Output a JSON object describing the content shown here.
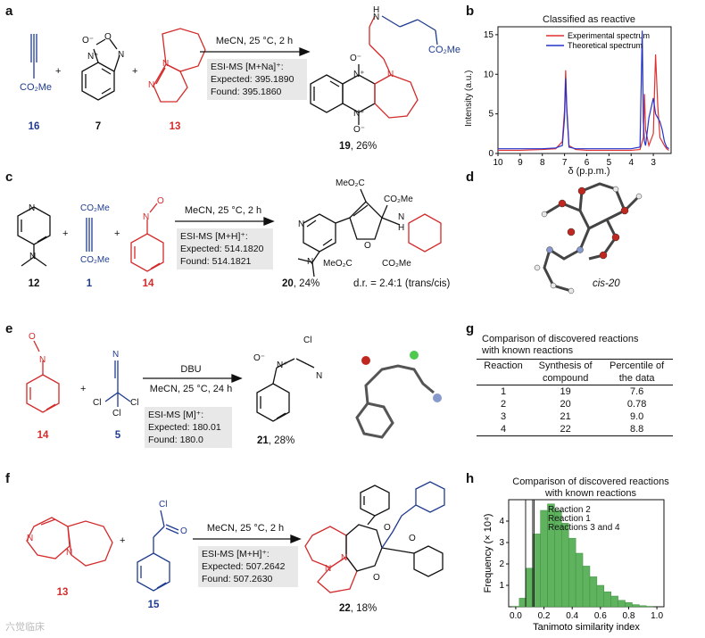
{
  "panel_labels": [
    "a",
    "b",
    "c",
    "d",
    "e",
    "f",
    "g",
    "h"
  ],
  "a": {
    "conditions": "MeCN, 25 °C, 2 h",
    "esi_lines": [
      "ESI-MS [M+Na]⁺:",
      "Expected: 395.1890",
      "Found: 395.1860"
    ],
    "reactants": [
      {
        "id": "16",
        "formula": "CO₂Me"
      },
      {
        "id": "7",
        "atoms": [
          "O⁻",
          "N⁺",
          "O",
          "N"
        ]
      },
      {
        "id": "13",
        "atoms": [
          "N",
          "N"
        ]
      }
    ],
    "product": {
      "id": "19",
      "yield": ", 26%",
      "atoms": [
        "O⁻",
        "N⁺",
        "N⁺",
        "O⁻",
        "N",
        "H",
        "N",
        "CO₂Me"
      ]
    }
  },
  "b": {
    "title": "Classified as reactive",
    "xlabel": "δ (p.p.m.)",
    "ylabel": "Intensity (a.u.)"
  },
  "c": {
    "conditions": "MeCN, 25 °C, 2 h",
    "esi_lines": [
      "ESI-MS [M+H]⁺:",
      "Expected: 514.1820",
      "Found: 514.1821"
    ],
    "reactants": [
      {
        "id": "12",
        "atoms": [
          "N",
          "N"
        ]
      },
      {
        "id": "1",
        "atoms": [
          "CO₂Me",
          "CO₂Me"
        ]
      },
      {
        "id": "14",
        "atoms": [
          "N",
          "O"
        ]
      }
    ],
    "product": {
      "id": "20",
      "yield": ", 24%",
      "dr": "d.r. = 2.4:1 (trans/cis)",
      "atoms": [
        "MeO₂C",
        "CO₂Me",
        "N",
        "O",
        "N",
        "H",
        "MeO₂C",
        "CO₂Me",
        "N"
      ]
    }
  },
  "d": {
    "caption": "cis-20"
  },
  "e": {
    "conditions_top": "DBU",
    "conditions": "MeCN, 25 °C, 24 h",
    "esi_lines": [
      "ESI-MS [M]⁺:",
      "Expected: 180.01",
      "Found: 180.0"
    ],
    "reactants": [
      {
        "id": "14",
        "atoms": [
          "N",
          "O"
        ]
      },
      {
        "id": "5",
        "atoms": [
          "N",
          "Cl",
          "Cl",
          "Cl"
        ]
      }
    ],
    "product": {
      "id": "21",
      "yield": ", 28%",
      "atoms": [
        "O⁻",
        "N⁺",
        "Cl",
        "N"
      ]
    }
  },
  "f": {
    "conditions": "MeCN, 25 °C, 2 h",
    "esi_lines": [
      "ESI-MS [M+H]⁺:",
      "Expected: 507.2642",
      "Found: 507.2630"
    ],
    "reactants": [
      {
        "id": "13",
        "atoms": [
          "N",
          "N"
        ]
      },
      {
        "id": "15",
        "atoms": [
          "Cl",
          "O"
        ]
      }
    ],
    "product": {
      "id": "22",
      "yield": ", 18%",
      "atoms": [
        "N",
        "N",
        "O",
        "O",
        "O"
      ]
    }
  },
  "g": {
    "title_lines": [
      "Comparison of discovered reactions",
      "with known reactions"
    ],
    "header1": [
      "Reaction",
      "Synthesis of",
      "Percentile of"
    ],
    "header2": [
      "",
      "compound",
      "the data"
    ],
    "rows": [
      [
        "1",
        "19",
        "7.6"
      ],
      [
        "2",
        "20",
        "0.78"
      ],
      [
        "3",
        "21",
        "9.0"
      ],
      [
        "4",
        "22",
        "8.8"
      ]
    ]
  },
  "h": {
    "title_lines": [
      "Comparison of discovered reactions",
      "with known reactions"
    ],
    "annotations": [
      "Reaction 2",
      "Reaction 1",
      "Reactions 3 and 4"
    ]
  },
  "plus_sign": "+",
  "watermark": "六觉临床",
  "chart_data": [
    {
      "panel": "b",
      "type": "line",
      "title": "Classified as reactive",
      "xlabel": "δ (p.p.m.)",
      "ylabel": "Intensity (a.u.)",
      "xlim": [
        10,
        2.2
      ],
      "ylim": [
        0,
        16
      ],
      "x_ticks": [
        10,
        9,
        8,
        7,
        6,
        5,
        4,
        3
      ],
      "y_ticks": [
        0,
        5,
        10,
        15
      ],
      "legend_position": "top-right",
      "series": [
        {
          "name": "Experimental spectrum",
          "color": "#e03030",
          "x": [
            10,
            9,
            8,
            7.4,
            7.1,
            7.0,
            6.95,
            6.9,
            6.8,
            6.5,
            6,
            5,
            4,
            3.6,
            3.45,
            3.4,
            3.35,
            3.2,
            3.0,
            2.9,
            2.8,
            2.7,
            2.6,
            2.5,
            2.4,
            2.3
          ],
          "y": [
            0.4,
            0.4,
            0.5,
            0.6,
            1.5,
            5.5,
            10.5,
            6.0,
            1.0,
            0.5,
            0.4,
            0.4,
            0.4,
            0.5,
            2.0,
            7.5,
            3.0,
            1.0,
            2.5,
            12.5,
            6.0,
            2.0,
            1.5,
            1.0,
            0.6,
            0.4
          ]
        },
        {
          "name": "Theoretical spectrum",
          "color": "#2233cc",
          "x": [
            10,
            9,
            8,
            7.4,
            7.1,
            7.0,
            6.95,
            6.9,
            6.8,
            6.5,
            6,
            5,
            4,
            3.6,
            3.5,
            3.45,
            3.4,
            3.35,
            3.2,
            3.0,
            2.9,
            2.8,
            2.7,
            2.6,
            2.5,
            2.4,
            2.3
          ],
          "y": [
            0.6,
            0.6,
            0.6,
            0.7,
            1.0,
            4.5,
            9.5,
            5.5,
            0.8,
            0.6,
            0.6,
            0.6,
            0.6,
            0.8,
            15.5,
            4.0,
            1.5,
            1.0,
            4.5,
            7.0,
            5.0,
            4.5,
            4.0,
            3.0,
            1.5,
            0.8,
            0.6
          ]
        }
      ]
    },
    {
      "panel": "h",
      "type": "area",
      "title": "Comparison of discovered reactions with known reactions",
      "xlabel": "Tanimoto similarity index",
      "ylabel": "Frequency (× 10⁴)",
      "xlim": [
        -0.05,
        1.05
      ],
      "ylim": [
        0,
        5
      ],
      "x_ticks": [
        0.0,
        0.2,
        0.4,
        0.6,
        0.8,
        1.0
      ],
      "y_ticks": [
        1,
        2,
        3,
        4
      ],
      "color": "#5fb35f",
      "x": [
        0.0,
        0.05,
        0.1,
        0.15,
        0.2,
        0.25,
        0.3,
        0.35,
        0.4,
        0.45,
        0.5,
        0.55,
        0.6,
        0.65,
        0.7,
        0.75,
        0.8,
        0.85,
        0.9,
        0.95,
        1.0
      ],
      "y": [
        0.02,
        0.4,
        1.8,
        3.4,
        4.5,
        4.8,
        4.5,
        3.9,
        3.2,
        2.5,
        1.9,
        1.4,
        1.0,
        0.7,
        0.5,
        0.3,
        0.2,
        0.1,
        0.05,
        0.02,
        0.0
      ],
      "markers": [
        {
          "label": "Reaction 2",
          "x": 0.07
        },
        {
          "label": "Reaction 1",
          "x": 0.12
        },
        {
          "label": "Reactions 3 and 4",
          "x": 0.13
        }
      ]
    }
  ]
}
